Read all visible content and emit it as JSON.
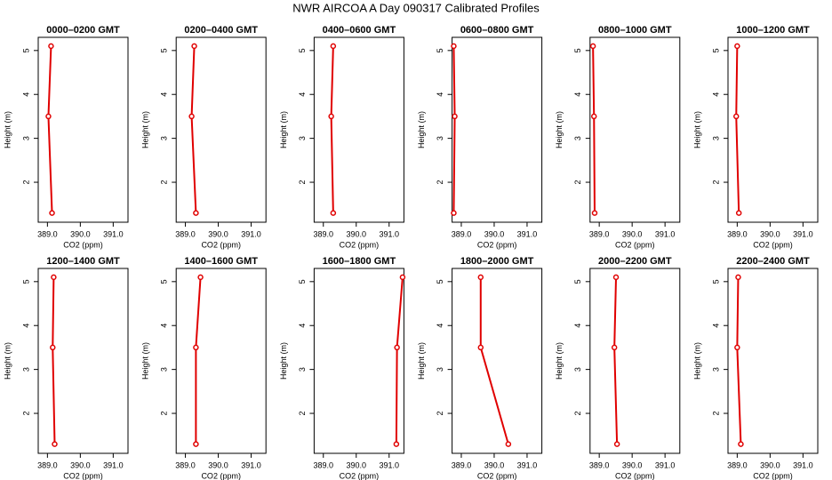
{
  "title": "NWR AIRCOA A  Day 090317  Calibrated Profiles",
  "chart_data": [
    {
      "type": "scatter",
      "title": "0000–0200 GMT",
      "xlabel": "CO2 (ppm)",
      "ylabel": "Height (m)",
      "color": "#e00000",
      "lines": true,
      "x": [
        389.11,
        389.03,
        389.14
      ],
      "y": [
        5.1,
        3.5,
        1.3
      ],
      "xlim": [
        388.72,
        391.45
      ],
      "ylim": [
        1.09,
        5.3
      ],
      "xticks": [
        {
          "value": 389,
          "label": "389.0"
        },
        {
          "value": 390,
          "label": "390.0"
        },
        {
          "value": 391,
          "label": "391.0"
        }
      ],
      "yticks": [
        2,
        3,
        4,
        5
      ]
    },
    {
      "type": "scatter",
      "title": "0200–0400 GMT",
      "xlabel": "CO2 (ppm)",
      "ylabel": "Height (m)",
      "color": "#e00000",
      "lines": true,
      "x": [
        389.27,
        389.19,
        389.32
      ],
      "y": [
        5.1,
        3.5,
        1.3
      ],
      "xlim": [
        388.72,
        391.45
      ],
      "ylim": [
        1.09,
        5.3
      ],
      "xticks": [
        {
          "value": 389,
          "label": "389.0"
        },
        {
          "value": 390,
          "label": "390.0"
        },
        {
          "value": 391,
          "label": "391.0"
        }
      ],
      "yticks": [
        2,
        3,
        4,
        5
      ]
    },
    {
      "type": "scatter",
      "title": "0400–0600 GMT",
      "xlabel": "CO2 (ppm)",
      "ylabel": "Height (m)",
      "color": "#e00000",
      "lines": true,
      "x": [
        389.3,
        389.24,
        389.3
      ],
      "y": [
        5.1,
        3.5,
        1.3
      ],
      "xlim": [
        388.72,
        391.45
      ],
      "ylim": [
        1.09,
        5.3
      ],
      "xticks": [
        {
          "value": 389,
          "label": "389.0"
        },
        {
          "value": 390,
          "label": "390.0"
        },
        {
          "value": 391,
          "label": "391.0"
        }
      ],
      "yticks": [
        2,
        3,
        4,
        5
      ]
    },
    {
      "type": "scatter",
      "title": "0600–0800 GMT",
      "xlabel": "CO2 (ppm)",
      "ylabel": "Height (m)",
      "color": "#e00000",
      "lines": true,
      "x": [
        388.77,
        388.8,
        388.77
      ],
      "y": [
        5.1,
        3.5,
        1.3
      ],
      "xlim": [
        388.72,
        391.45
      ],
      "ylim": [
        1.09,
        5.3
      ],
      "xticks": [
        {
          "value": 389,
          "label": "389.0"
        },
        {
          "value": 390,
          "label": "390.0"
        },
        {
          "value": 391,
          "label": "391.0"
        }
      ],
      "yticks": [
        2,
        3,
        4,
        5
      ]
    },
    {
      "type": "scatter",
      "title": "0800–1000 GMT",
      "xlabel": "CO2 (ppm)",
      "ylabel": "Height (m)",
      "color": "#e00000",
      "lines": true,
      "x": [
        388.81,
        388.84,
        388.86
      ],
      "y": [
        5.1,
        3.5,
        1.3
      ],
      "xlim": [
        388.72,
        391.45
      ],
      "ylim": [
        1.09,
        5.3
      ],
      "xticks": [
        {
          "value": 389,
          "label": "389.0"
        },
        {
          "value": 390,
          "label": "390.0"
        },
        {
          "value": 391,
          "label": "391.0"
        }
      ],
      "yticks": [
        2,
        3,
        4,
        5
      ]
    },
    {
      "type": "scatter",
      "title": "1000–1200 GMT",
      "xlabel": "CO2 (ppm)",
      "ylabel": "Height (m)",
      "color": "#e00000",
      "lines": true,
      "x": [
        389.0,
        388.97,
        389.05
      ],
      "y": [
        5.1,
        3.5,
        1.3
      ],
      "xlim": [
        388.72,
        391.45
      ],
      "ylim": [
        1.09,
        5.3
      ],
      "xticks": [
        {
          "value": 389,
          "label": "389.0"
        },
        {
          "value": 390,
          "label": "390.0"
        },
        {
          "value": 391,
          "label": "391.0"
        }
      ],
      "yticks": [
        2,
        3,
        4,
        5
      ]
    },
    {
      "type": "scatter",
      "title": "1200–1400 GMT",
      "xlabel": "CO2 (ppm)",
      "ylabel": "Height (m)",
      "color": "#e00000",
      "lines": true,
      "x": [
        389.19,
        389.16,
        389.22
      ],
      "y": [
        5.1,
        3.5,
        1.3
      ],
      "xlim": [
        388.72,
        391.45
      ],
      "ylim": [
        1.09,
        5.3
      ],
      "xticks": [
        {
          "value": 389,
          "label": "389.0"
        },
        {
          "value": 390,
          "label": "390.0"
        },
        {
          "value": 391,
          "label": "391.0"
        }
      ],
      "yticks": [
        2,
        3,
        4,
        5
      ]
    },
    {
      "type": "scatter",
      "title": "1400–1600 GMT",
      "xlabel": "CO2 (ppm)",
      "ylabel": "Height (m)",
      "color": "#e00000",
      "lines": true,
      "x": [
        389.46,
        389.32,
        389.32
      ],
      "y": [
        5.1,
        3.5,
        1.3
      ],
      "xlim": [
        388.72,
        391.45
      ],
      "ylim": [
        1.09,
        5.3
      ],
      "xticks": [
        {
          "value": 389,
          "label": "389.0"
        },
        {
          "value": 390,
          "label": "390.0"
        },
        {
          "value": 391,
          "label": "391.0"
        }
      ],
      "yticks": [
        2,
        3,
        4,
        5
      ]
    },
    {
      "type": "scatter",
      "title": "1600–1800 GMT",
      "xlabel": "CO2 (ppm)",
      "ylabel": "Height (m)",
      "color": "#e00000",
      "lines": true,
      "x": [
        391.41,
        391.24,
        391.22
      ],
      "y": [
        5.1,
        3.5,
        1.3
      ],
      "xlim": [
        388.72,
        391.45
      ],
      "ylim": [
        1.09,
        5.3
      ],
      "xticks": [
        {
          "value": 389,
          "label": "389.0"
        },
        {
          "value": 390,
          "label": "390.0"
        },
        {
          "value": 391,
          "label": "391.0"
        }
      ],
      "yticks": [
        2,
        3,
        4,
        5
      ]
    },
    {
      "type": "scatter",
      "title": "1800–2000 GMT",
      "xlabel": "CO2 (ppm)",
      "ylabel": "Height (m)",
      "color": "#e00000",
      "lines": true,
      "x": [
        389.59,
        389.59,
        390.43
      ],
      "y": [
        5.1,
        3.5,
        1.3
      ],
      "xlim": [
        388.72,
        391.45
      ],
      "ylim": [
        1.09,
        5.3
      ],
      "xticks": [
        {
          "value": 389,
          "label": "389.0"
        },
        {
          "value": 390,
          "label": "390.0"
        },
        {
          "value": 391,
          "label": "391.0"
        }
      ],
      "yticks": [
        2,
        3,
        4,
        5
      ]
    },
    {
      "type": "scatter",
      "title": "2000–2200 GMT",
      "xlabel": "CO2 (ppm)",
      "ylabel": "Height (m)",
      "color": "#e00000",
      "lines": true,
      "x": [
        389.51,
        389.46,
        389.54
      ],
      "y": [
        5.1,
        3.5,
        1.3
      ],
      "xlim": [
        388.72,
        391.45
      ],
      "ylim": [
        1.09,
        5.3
      ],
      "xticks": [
        {
          "value": 389,
          "label": "389.0"
        },
        {
          "value": 390,
          "label": "390.0"
        },
        {
          "value": 391,
          "label": "391.0"
        }
      ],
      "yticks": [
        2,
        3,
        4,
        5
      ]
    },
    {
      "type": "scatter",
      "title": "2200–2400 GMT",
      "xlabel": "CO2 (ppm)",
      "ylabel": "Height (m)",
      "color": "#e00000",
      "lines": true,
      "x": [
        389.03,
        389.0,
        389.11
      ],
      "y": [
        5.1,
        3.5,
        1.3
      ],
      "xlim": [
        388.72,
        391.45
      ],
      "ylim": [
        1.09,
        5.3
      ],
      "xticks": [
        {
          "value": 389,
          "label": "389.0"
        },
        {
          "value": 390,
          "label": "390.0"
        },
        {
          "value": 391,
          "label": "391.0"
        }
      ],
      "yticks": [
        2,
        3,
        4,
        5
      ]
    }
  ]
}
